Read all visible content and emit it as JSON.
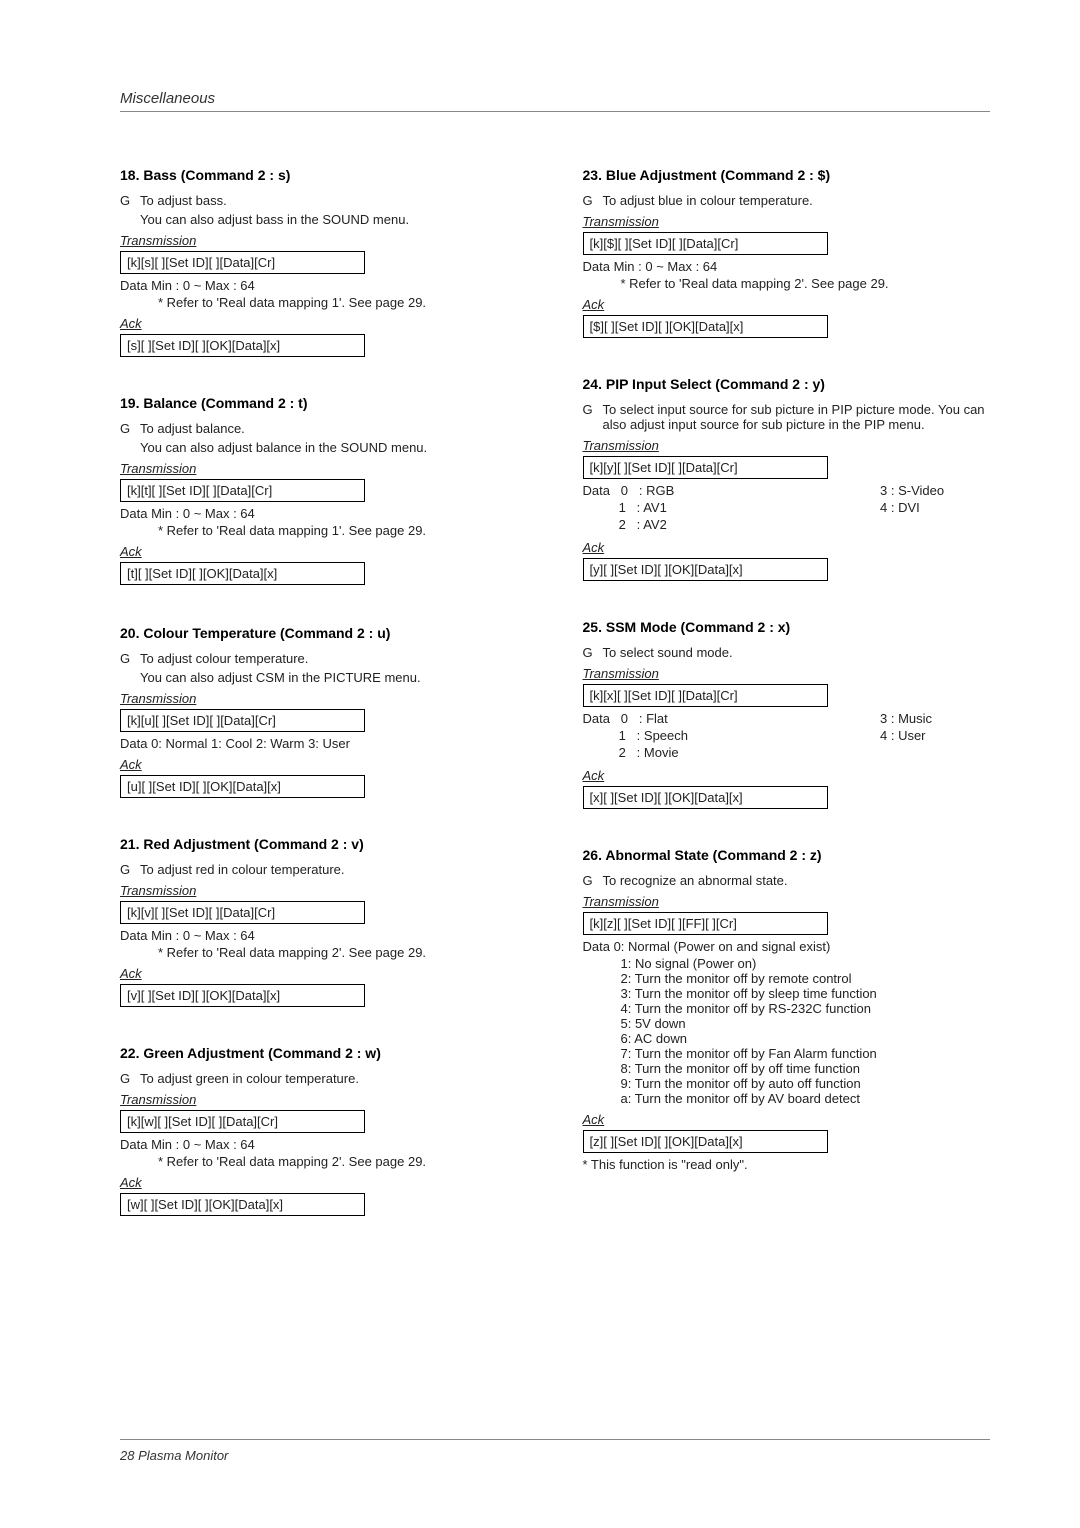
{
  "header": "Miscellaneous",
  "footer": "28   Plasma Monitor",
  "labels": {
    "transmission": "Transmission",
    "ack": "Ack"
  },
  "left": [
    {
      "title": "18. Bass (Command 2 : s)",
      "desc": [
        "To adjust bass.",
        "You can also adjust bass in the SOUND menu."
      ],
      "tx": "[k][s][  ][Set ID][  ][Data][Cr]",
      "data": "Data   Min : 0 ~ Max : 64",
      "ref": "* Refer to 'Real data mapping 1'. See page 29.",
      "ack": "[s][  ][Set ID][  ][OK][Data][x]"
    },
    {
      "title": "19. Balance (Command 2 : t)",
      "desc": [
        "To adjust balance.",
        "You can also adjust balance in the SOUND menu."
      ],
      "tx": "[k][t][  ][Set ID][  ][Data][Cr]",
      "data": "Data   Min : 0 ~ Max : 64",
      "ref": "* Refer to 'Real data mapping 1'. See page 29.",
      "ack": "[t][  ][Set ID][  ][OK][Data][x]"
    },
    {
      "title": "20. Colour Temperature (Command 2 : u)",
      "desc": [
        "To adjust colour temperature.",
        "You can also adjust CSM in the PICTURE menu."
      ],
      "tx": "[k][u][  ][Set ID][  ][Data][Cr]",
      "data": "Data   0: Normal    1: Cool    2: Warm    3: User",
      "ack": "[u][  ][Set ID][  ][OK][Data][x]"
    },
    {
      "title": "21. Red Adjustment (Command 2 : v)",
      "desc": [
        "To adjust red in colour temperature."
      ],
      "tx": "[k][v][  ][Set ID][  ][Data][Cr]",
      "data": "Data   Min : 0 ~ Max : 64",
      "ref": "* Refer to 'Real data mapping 2'. See page 29.",
      "ack": "[v][  ][Set ID][  ][OK][Data][x]"
    },
    {
      "title": "22. Green Adjustment (Command 2 : w)",
      "desc": [
        "To adjust green in colour temperature."
      ],
      "tx": "[k][w][  ][Set ID][  ][Data][Cr]",
      "data": "Data   Min : 0 ~ Max : 64",
      "ref": "* Refer to 'Real data mapping 2'. See page 29.",
      "ack": "[w][  ][Set ID][  ][OK][Data][x]"
    }
  ],
  "right": [
    {
      "title": "23. Blue Adjustment (Command 2 : $)",
      "desc": [
        "To adjust blue in colour temperature."
      ],
      "tx": "[k][$][  ][Set ID][  ][Data][Cr]",
      "data": "Data   Min : 0 ~ Max : 64",
      "ref": "* Refer to 'Real data mapping 2'. See page 29.",
      "ack": "[$][  ][Set ID][  ][OK][Data][x]"
    },
    {
      "title": "24. PIP Input Select (Command 2 : y)",
      "desc": [
        "To select input source for sub picture in PIP picture mode. You can also adjust input source for sub picture in the PIP menu."
      ],
      "tx": "[k][y][  ][Set ID][  ][Data][Cr]",
      "opts2": {
        "left": [
          "Data   0   : RGB",
          "          1   : AV1",
          "          2   : AV2"
        ],
        "right": [
          "3   : S-Video",
          "4   : DVI"
        ]
      },
      "ack": "[y][  ][Set ID][  ][OK][Data][x]"
    },
    {
      "title": "25. SSM Mode (Command 2 : x)",
      "desc": [
        "To select sound mode."
      ],
      "tx": "[k][x][  ][Set ID][  ][Data][Cr]",
      "opts2": {
        "left": [
          "Data   0   : Flat",
          "          1   : Speech",
          "          2   : Movie"
        ],
        "right": [
          "3   : Music",
          "4   : User"
        ]
      },
      "ack": "[x][  ][Set ID][  ][OK][Data][x]"
    },
    {
      "title": "26. Abnormal State (Command 2 : z)",
      "desc": [
        "To recognize an abnormal state."
      ],
      "tx": "[k][z][  ][Set ID][  ][FF][  ][Cr]",
      "list": [
        "Data   0: Normal (Power on and signal exist)",
        "1: No signal (Power on)",
        "2: Turn the monitor off by remote control",
        "3: Turn the monitor off by sleep time function",
        "4: Turn the monitor off by RS-232C function",
        "5: 5V down",
        "6: AC down",
        "7: Turn the monitor off by Fan Alarm function",
        "8: Turn the monitor off by off time function",
        "9: Turn the monitor off by auto off function",
        "a: Turn the monitor off by AV board detect"
      ],
      "ack": "[z][  ][Set ID][  ][OK][Data][x]",
      "note": "* This function is \"read only\"."
    }
  ]
}
